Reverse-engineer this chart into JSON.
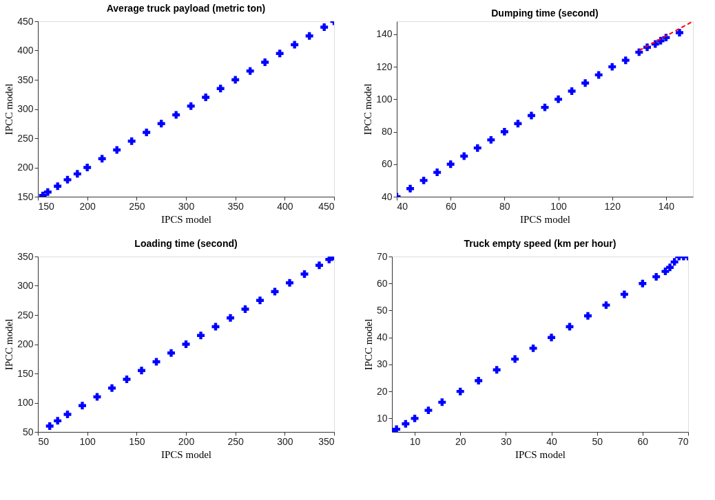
{
  "chart_data": [
    {
      "type": "scatter",
      "title": "Average truck payload (metric ton)",
      "xlabel": "IPCS model",
      "ylabel": "IPCC model",
      "xlim": [
        150,
        450
      ],
      "ylim": [
        150,
        450
      ],
      "xticks": [
        150,
        200,
        250,
        300,
        350,
        400,
        450
      ],
      "yticks": [
        150,
        200,
        250,
        300,
        350,
        400,
        450
      ],
      "grid": false,
      "marker": "cross",
      "series": [
        {
          "color": "#0000ff",
          "x": [
            155,
            160,
            170,
            180,
            190,
            200,
            215,
            230,
            245,
            260,
            275,
            290,
            305,
            320,
            335,
            350,
            365,
            380,
            395,
            410,
            425,
            440,
            450
          ],
          "values": [
            152,
            158,
            168,
            179,
            189,
            200,
            215,
            230,
            245,
            260,
            275,
            290,
            305,
            320,
            335,
            350,
            365,
            380,
            395,
            410,
            425,
            440,
            450
          ]
        }
      ]
    },
    {
      "type": "scatter",
      "title": "Dumping time (second)",
      "xlabel": "IPCS model",
      "ylabel": "IPCC model",
      "xlim": [
        40,
        150
      ],
      "ylim": [
        40,
        148
      ],
      "xticks": [
        40,
        60,
        80,
        100,
        120,
        140
      ],
      "yticks": [
        40,
        60,
        80,
        100,
        120,
        140
      ],
      "grid": false,
      "marker": "cross",
      "series": [
        {
          "color": "#0000ff",
          "x": [
            40,
            45,
            50,
            55,
            60,
            65,
            70,
            75,
            80,
            85,
            90,
            95,
            100,
            105,
            110,
            115,
            120,
            125,
            130,
            133,
            136,
            138,
            140,
            145
          ],
          "values": [
            40,
            45,
            50,
            55,
            60,
            65,
            70,
            75,
            80,
            85,
            90,
            95,
            100,
            105,
            110,
            115,
            120,
            124,
            129,
            132,
            134,
            136,
            138,
            141
          ]
        },
        {
          "type": "line",
          "color": "#ff0000",
          "line_style": "dashed",
          "marker": "none",
          "x": [
            130,
            150
          ],
          "values": [
            130,
            148
          ]
        }
      ]
    },
    {
      "type": "scatter",
      "title": "Loading time (second)",
      "xlabel": "IPCS model",
      "ylabel": "IPCC model",
      "xlim": [
        50,
        350
      ],
      "ylim": [
        50,
        350
      ],
      "xticks": [
        50,
        100,
        150,
        200,
        250,
        300,
        350
      ],
      "yticks": [
        50,
        100,
        150,
        200,
        250,
        300,
        350
      ],
      "grid": false,
      "marker": "cross",
      "series": [
        {
          "color": "#0000ff",
          "x": [
            62,
            70,
            80,
            95,
            110,
            125,
            140,
            155,
            170,
            185,
            200,
            215,
            230,
            245,
            260,
            275,
            290,
            305,
            320,
            335,
            345,
            350
          ],
          "values": [
            60,
            69,
            80,
            95,
            110,
            125,
            140,
            155,
            170,
            185,
            200,
            215,
            230,
            245,
            260,
            275,
            290,
            305,
            320,
            335,
            345,
            350
          ]
        }
      ]
    },
    {
      "type": "scatter",
      "title": "Truck empty speed (km per hour)",
      "xlabel": "IPCS model",
      "ylabel": "IPCC model",
      "xlim": [
        5,
        70
      ],
      "ylim": [
        5,
        70
      ],
      "xticks": [
        10,
        20,
        30,
        40,
        50,
        60,
        70
      ],
      "yticks": [
        10,
        20,
        30,
        40,
        50,
        60,
        70
      ],
      "grid": false,
      "marker": "cross",
      "series": [
        {
          "color": "#0000ff",
          "x": [
            5,
            6,
            8,
            10,
            13,
            16,
            20,
            24,
            28,
            32,
            36,
            40,
            44,
            48,
            52,
            56,
            60,
            63,
            65,
            66,
            67,
            68,
            69,
            70
          ],
          "values": [
            5,
            6,
            8,
            10,
            13,
            16,
            20,
            24,
            28,
            32,
            36,
            40,
            44,
            48,
            52,
            56,
            60,
            62.5,
            64.5,
            66,
            68,
            70,
            70,
            70
          ]
        }
      ]
    }
  ]
}
